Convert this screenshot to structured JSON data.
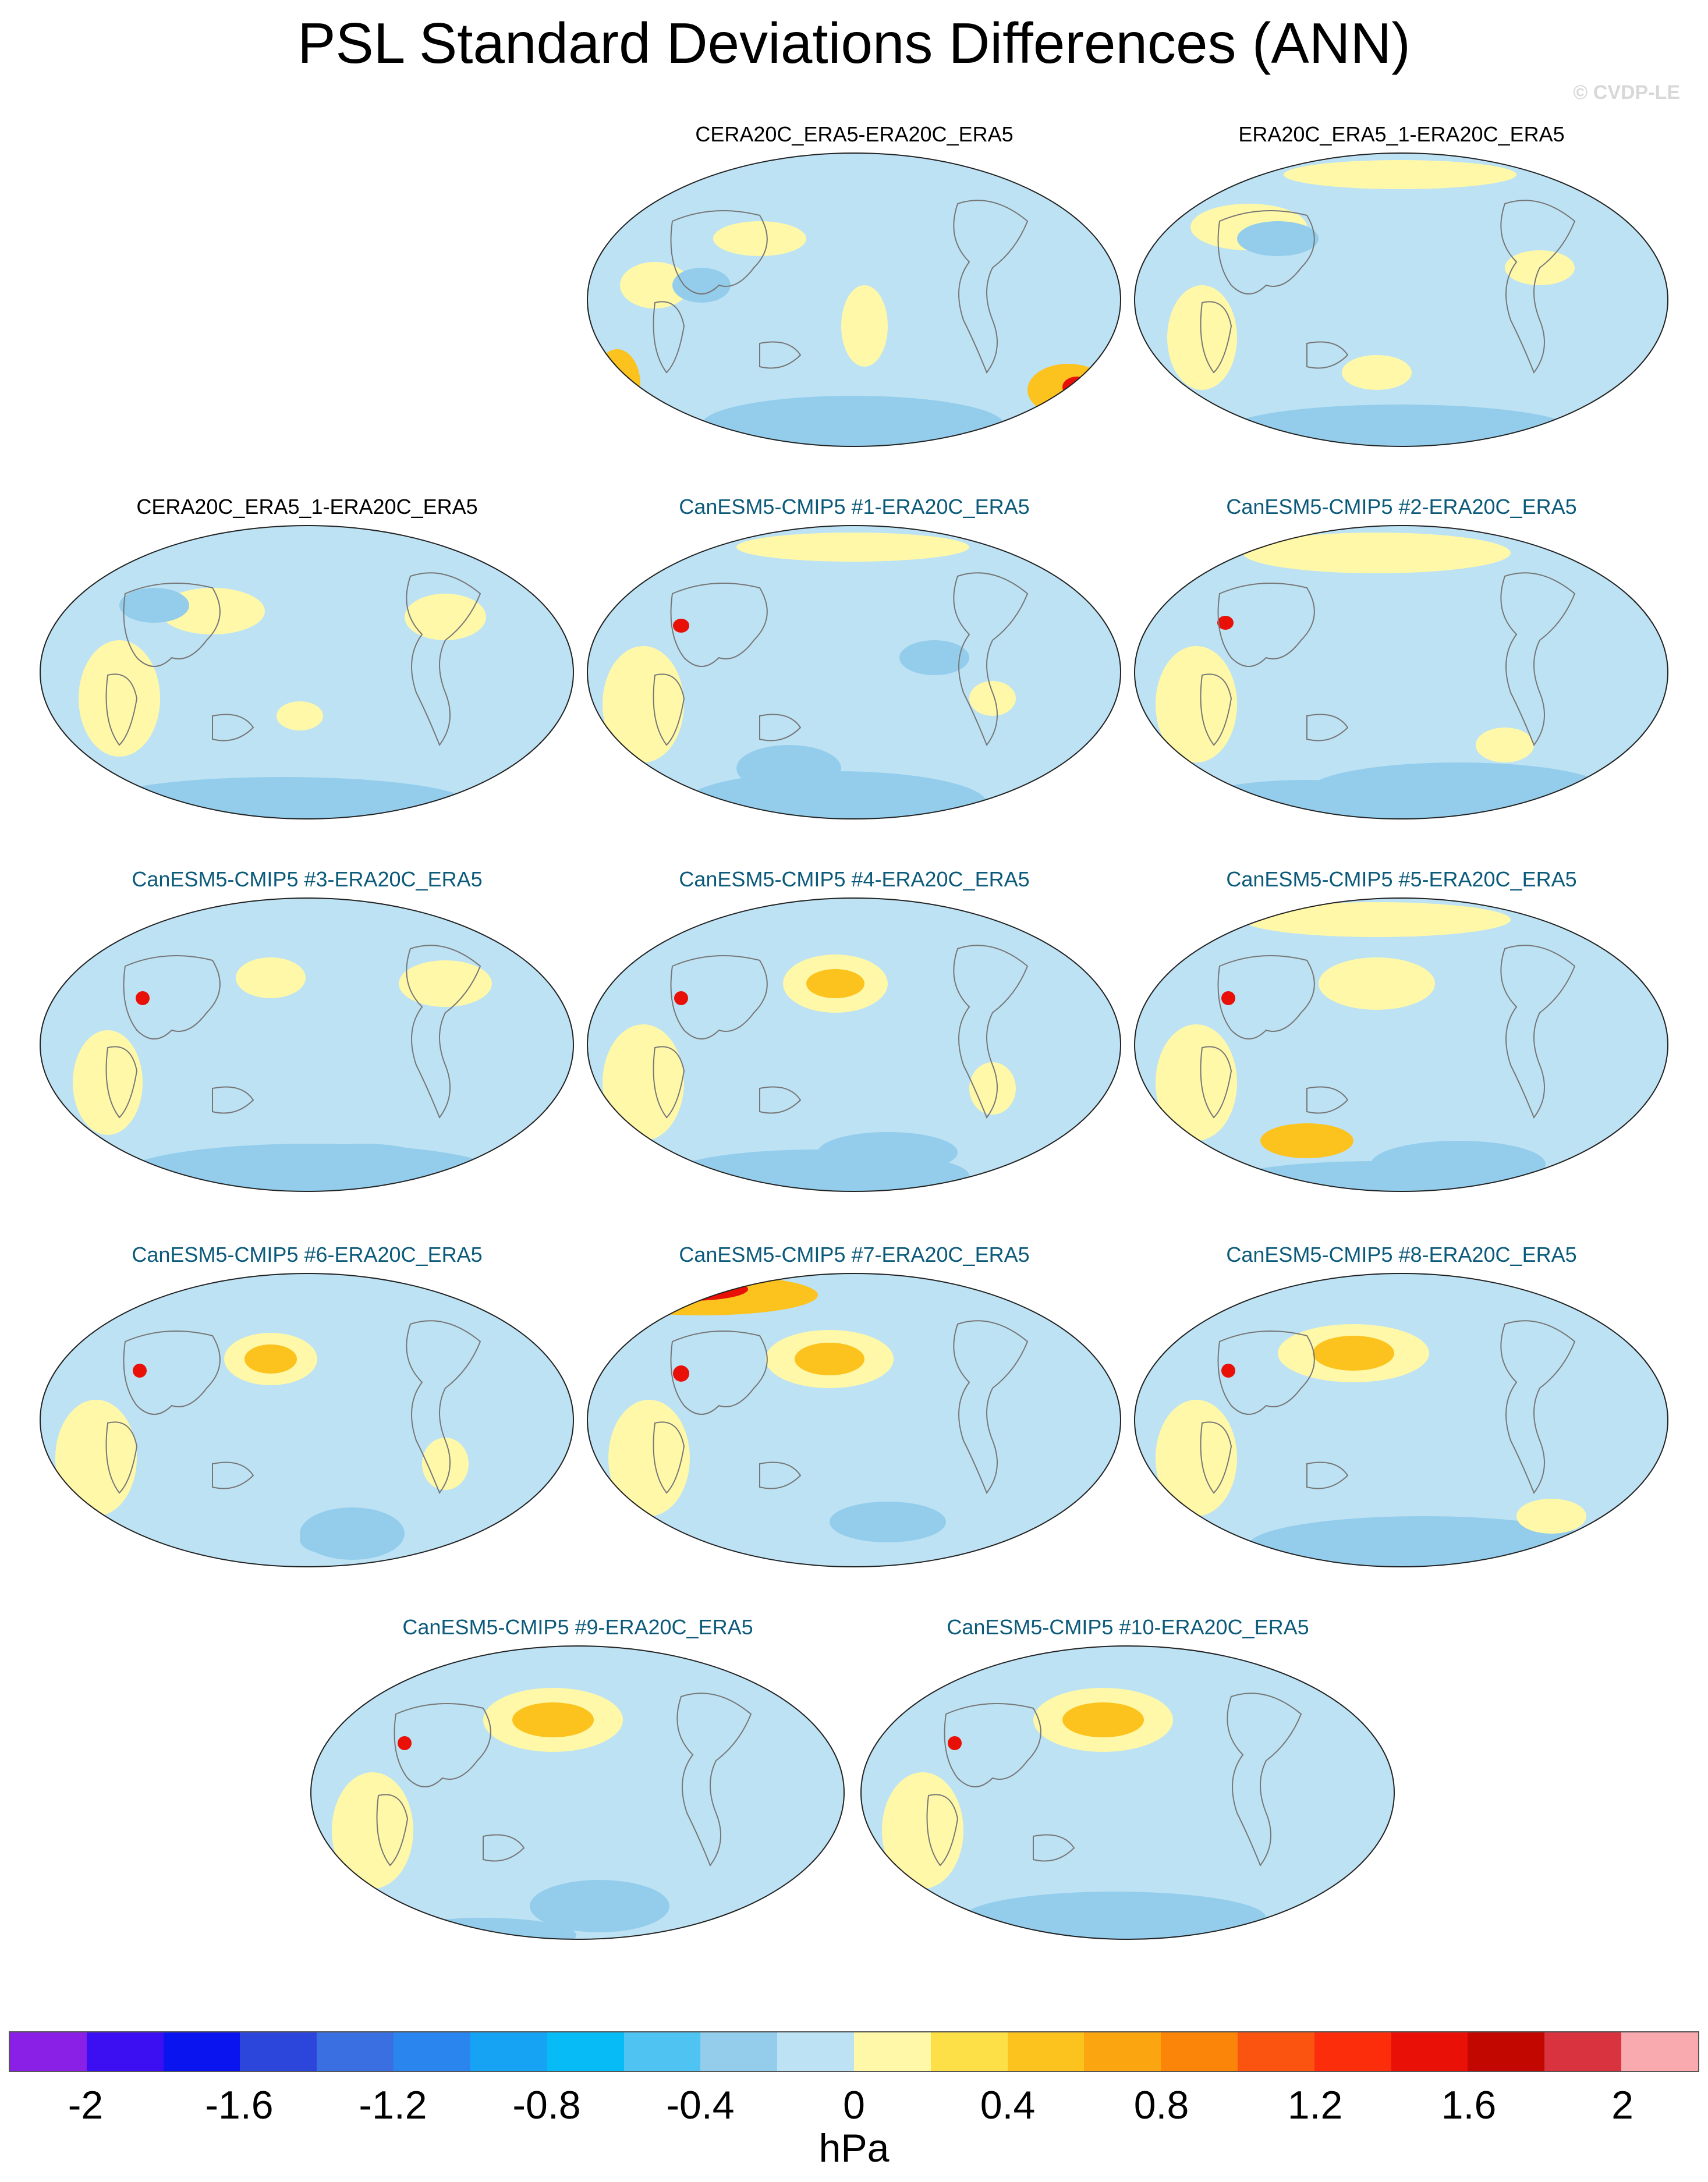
{
  "title": "PSL Standard Deviations Differences (ANN)",
  "copyright": "© CVDP-LE",
  "units": "hPa",
  "panels": [
    {
      "label": "CERA20C_ERA5-ERA20C_ERA5",
      "kind": "obs"
    },
    {
      "label": "ERA20C_ERA5_1-ERA20C_ERA5",
      "kind": "obs"
    },
    {
      "label": "CERA20C_ERA5_1-ERA20C_ERA5",
      "kind": "obs"
    },
    {
      "label": "CanESM5-CMIP5 #1-ERA20C_ERA5",
      "kind": "model"
    },
    {
      "label": "CanESM5-CMIP5 #2-ERA20C_ERA5",
      "kind": "model"
    },
    {
      "label": "CanESM5-CMIP5 #3-ERA20C_ERA5",
      "kind": "model"
    },
    {
      "label": "CanESM5-CMIP5 #4-ERA20C_ERA5",
      "kind": "model"
    },
    {
      "label": "CanESM5-CMIP5 #5-ERA20C_ERA5",
      "kind": "model"
    },
    {
      "label": "CanESM5-CMIP5 #6-ERA20C_ERA5",
      "kind": "model"
    },
    {
      "label": "CanESM5-CMIP5 #7-ERA20C_ERA5",
      "kind": "model"
    },
    {
      "label": "CanESM5-CMIP5 #8-ERA20C_ERA5",
      "kind": "model"
    },
    {
      "label": "CanESM5-CMIP5 #9-ERA20C_ERA5",
      "kind": "model"
    },
    {
      "label": "CanESM5-CMIP5 #10-ERA20C_ERA5",
      "kind": "model"
    }
  ],
  "colorbar": {
    "colors": [
      "#8a1fe6",
      "#3b0ff2",
      "#0a14ee",
      "#2c46dc",
      "#3a6fe2",
      "#2a86ee",
      "#16a3f4",
      "#06bbf6",
      "#4fc3f2",
      "#93cdeb",
      "#bde2f4",
      "#fff8a8",
      "#fde048",
      "#fcc21e",
      "#fba511",
      "#fb8508",
      "#fa5410",
      "#fb2d0a",
      "#e81007",
      "#c20600",
      "#d8333e",
      "#f8aaae"
    ],
    "tick_labels": [
      "-2",
      "-1.6",
      "-1.2",
      "-0.8",
      "-0.4",
      "0",
      "0.4",
      "0.8",
      "1.2",
      "1.6",
      "2"
    ]
  }
}
